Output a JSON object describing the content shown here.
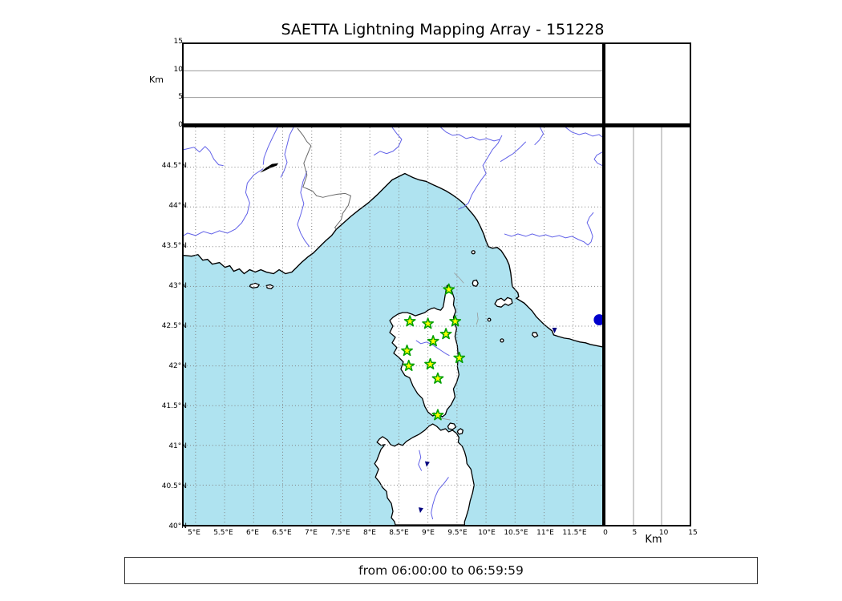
{
  "title": "SAETTA Lightning Mapping Array - 151228",
  "caption": "from 06:00:00 to 06:59:59",
  "alt_axis": {
    "unit": "Km",
    "max_km": 15,
    "ticks": [
      {
        "v": 0,
        "label": "0"
      },
      {
        "v": 5,
        "label": "5"
      },
      {
        "v": 10,
        "label": "10"
      },
      {
        "v": 15,
        "label": "15"
      }
    ],
    "grid_values": [
      5,
      10
    ]
  },
  "lon_axis": {
    "ticks": [
      {
        "v": 5,
        "label": "5°E"
      },
      {
        "v": 5.5,
        "label": "5.5°E"
      },
      {
        "v": 6,
        "label": "6°E"
      },
      {
        "v": 6.5,
        "label": "6.5°E"
      },
      {
        "v": 7,
        "label": "7°E"
      },
      {
        "v": 7.5,
        "label": "7.5°E"
      },
      {
        "v": 8,
        "label": "8°E"
      },
      {
        "v": 8.5,
        "label": "8.5°E"
      },
      {
        "v": 9,
        "label": "9°E"
      },
      {
        "v": 9.5,
        "label": "9.5°E"
      },
      {
        "v": 10,
        "label": "10°E"
      },
      {
        "v": 10.5,
        "label": "10.5°E"
      },
      {
        "v": 11,
        "label": "11°E"
      },
      {
        "v": 11.5,
        "label": "11.5°E"
      }
    ]
  },
  "lat_axis": {
    "ticks": [
      {
        "v": 44.5,
        "label": "44.5°N"
      },
      {
        "v": 44,
        "label": "44°N"
      },
      {
        "v": 43.5,
        "label": "43.5°N"
      },
      {
        "v": 43,
        "label": "43°N"
      },
      {
        "v": 42.5,
        "label": "42.5°N"
      },
      {
        "v": 42,
        "label": "42°N"
      },
      {
        "v": 41.5,
        "label": "41.5°N"
      },
      {
        "v": 41,
        "label": "41°N"
      },
      {
        "v": 40.5,
        "label": "40.5°N"
      },
      {
        "v": 40,
        "label": "40°N"
      }
    ]
  },
  "stations": [
    {
      "lon": 9.36,
      "lat": 42.96
    },
    {
      "lon": 8.69,
      "lat": 42.56
    },
    {
      "lon": 9.0,
      "lat": 42.53
    },
    {
      "lon": 9.47,
      "lat": 42.56
    },
    {
      "lon": 9.31,
      "lat": 42.4
    },
    {
      "lon": 9.09,
      "lat": 42.31
    },
    {
      "lon": 8.64,
      "lat": 42.19
    },
    {
      "lon": 9.54,
      "lat": 42.1
    },
    {
      "lon": 9.04,
      "lat": 42.02
    },
    {
      "lon": 8.67,
      "lat": 42.0
    },
    {
      "lon": 9.17,
      "lat": 41.84
    },
    {
      "lon": 9.17,
      "lat": 41.38
    }
  ],
  "markers": {
    "city_circle": {
      "lon": 11.95,
      "lat": 42.58,
      "r": 7
    },
    "coast_dot": {
      "lon": 11.18,
      "lat": 42.45
    },
    "lakes": [
      {
        "lon": 8.99,
        "lat": 40.77
      },
      {
        "lon": 8.88,
        "lat": 40.19
      }
    ]
  },
  "chart_data": {
    "type": "scatter",
    "title": "SAETTA Lightning Mapping Array - 151228",
    "xlabel_unit": "Km",
    "x_range_lon": [
      4.8,
      12.0
    ],
    "y_range_lat": [
      40.0,
      45.0
    ],
    "alt_range_km": [
      0,
      15
    ],
    "series": [
      {
        "name": "LMA stations",
        "points": [
          [
            9.36,
            42.96
          ],
          [
            8.69,
            42.56
          ],
          [
            9.0,
            42.53
          ],
          [
            9.47,
            42.56
          ],
          [
            9.31,
            42.4
          ],
          [
            9.09,
            42.31
          ],
          [
            8.64,
            42.19
          ],
          [
            9.54,
            42.1
          ],
          [
            9.04,
            42.02
          ],
          [
            8.67,
            42.0
          ],
          [
            9.17,
            41.84
          ],
          [
            9.17,
            41.38
          ]
        ]
      }
    ]
  },
  "colors": {
    "sea": "#afe3f0",
    "land": "#ffffff",
    "coast": "#000000",
    "river": "#6060e8",
    "border_line": "#666666",
    "grid": "#808080",
    "panel_grid": "#999999",
    "star_fill": "#ffff00",
    "star_edge": "#00a000",
    "city_marker": "#0000cc",
    "lake": "#000080"
  }
}
